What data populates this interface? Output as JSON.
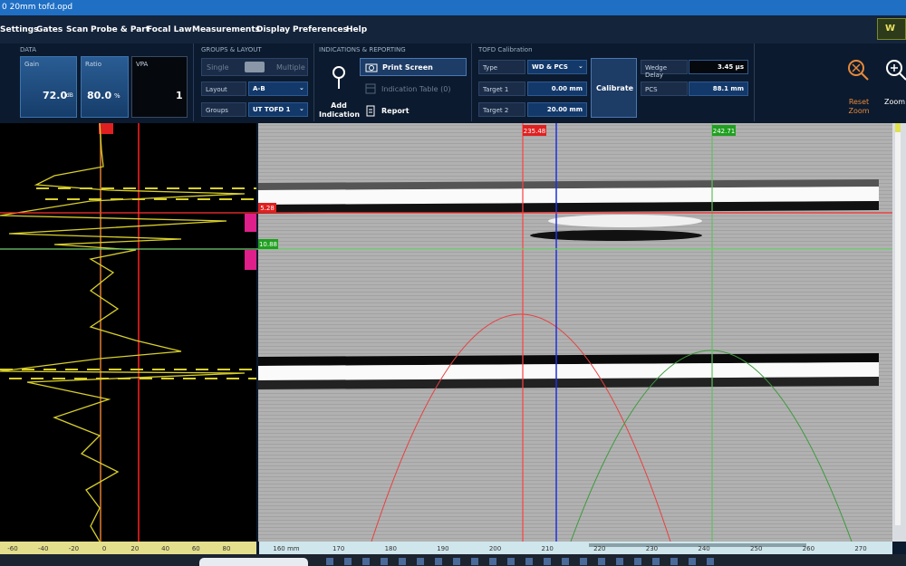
{
  "title_bar": {
    "title": "0 20mm tofd.opd"
  },
  "menu": [
    "Settings",
    "Gates",
    "Scan",
    "Probe & Part",
    "Focal Law",
    "Measurements",
    "Display",
    "Preferences",
    "Help"
  ],
  "user_badge": "W",
  "ribbon": {
    "data": {
      "heading": "DATA",
      "gain": {
        "label": "Gain",
        "value": "72.0",
        "unit": "dB"
      },
      "ratio": {
        "label": "Ratio",
        "value": "80.0",
        "unit": "%"
      },
      "vpa": {
        "label": "VPA",
        "value": "1"
      }
    },
    "groups_layout": {
      "heading": "GROUPS & LAYOUT",
      "single": "Single",
      "multiple": "Multiple",
      "layout": {
        "label": "Layout",
        "value": "A-B"
      },
      "groups": {
        "label": "Groups",
        "value": "UT TOFD 1"
      }
    },
    "indications": {
      "heading": "INDICATIONS & REPORTING",
      "add": "Add Indication",
      "print": "Print Screen",
      "table": "Indication Table (0)",
      "report": "Report"
    },
    "tofd": {
      "heading": "TOFD Calibration",
      "type": {
        "label": "Type",
        "value": "WD & PCS"
      },
      "target1": {
        "label": "Target 1",
        "value": "0.00 mm"
      },
      "target2": {
        "label": "Target 2",
        "value": "20.00 mm"
      },
      "calibrate": "Calibrate",
      "wedge_delay": {
        "label": "Wedge Delay",
        "value": "3.45 µs"
      },
      "pcs": {
        "label": "PCS",
        "value": "88.1 mm"
      }
    },
    "zoom": {
      "reset": "Reset Zoom",
      "zoom": "Zoom"
    }
  },
  "bscan": {
    "cursor_red": "235.48",
    "cursor_green": "242.71",
    "depth_red": "5.28",
    "depth_green": "10.88"
  },
  "ascan_axis": [
    "-60",
    "-40",
    "-20",
    "0",
    "20",
    "40",
    "60",
    "80"
  ],
  "bscan_axis": [
    "160 mm",
    "170",
    "180",
    "190",
    "200",
    "210",
    "220",
    "230",
    "240",
    "250",
    "260",
    "270"
  ]
}
